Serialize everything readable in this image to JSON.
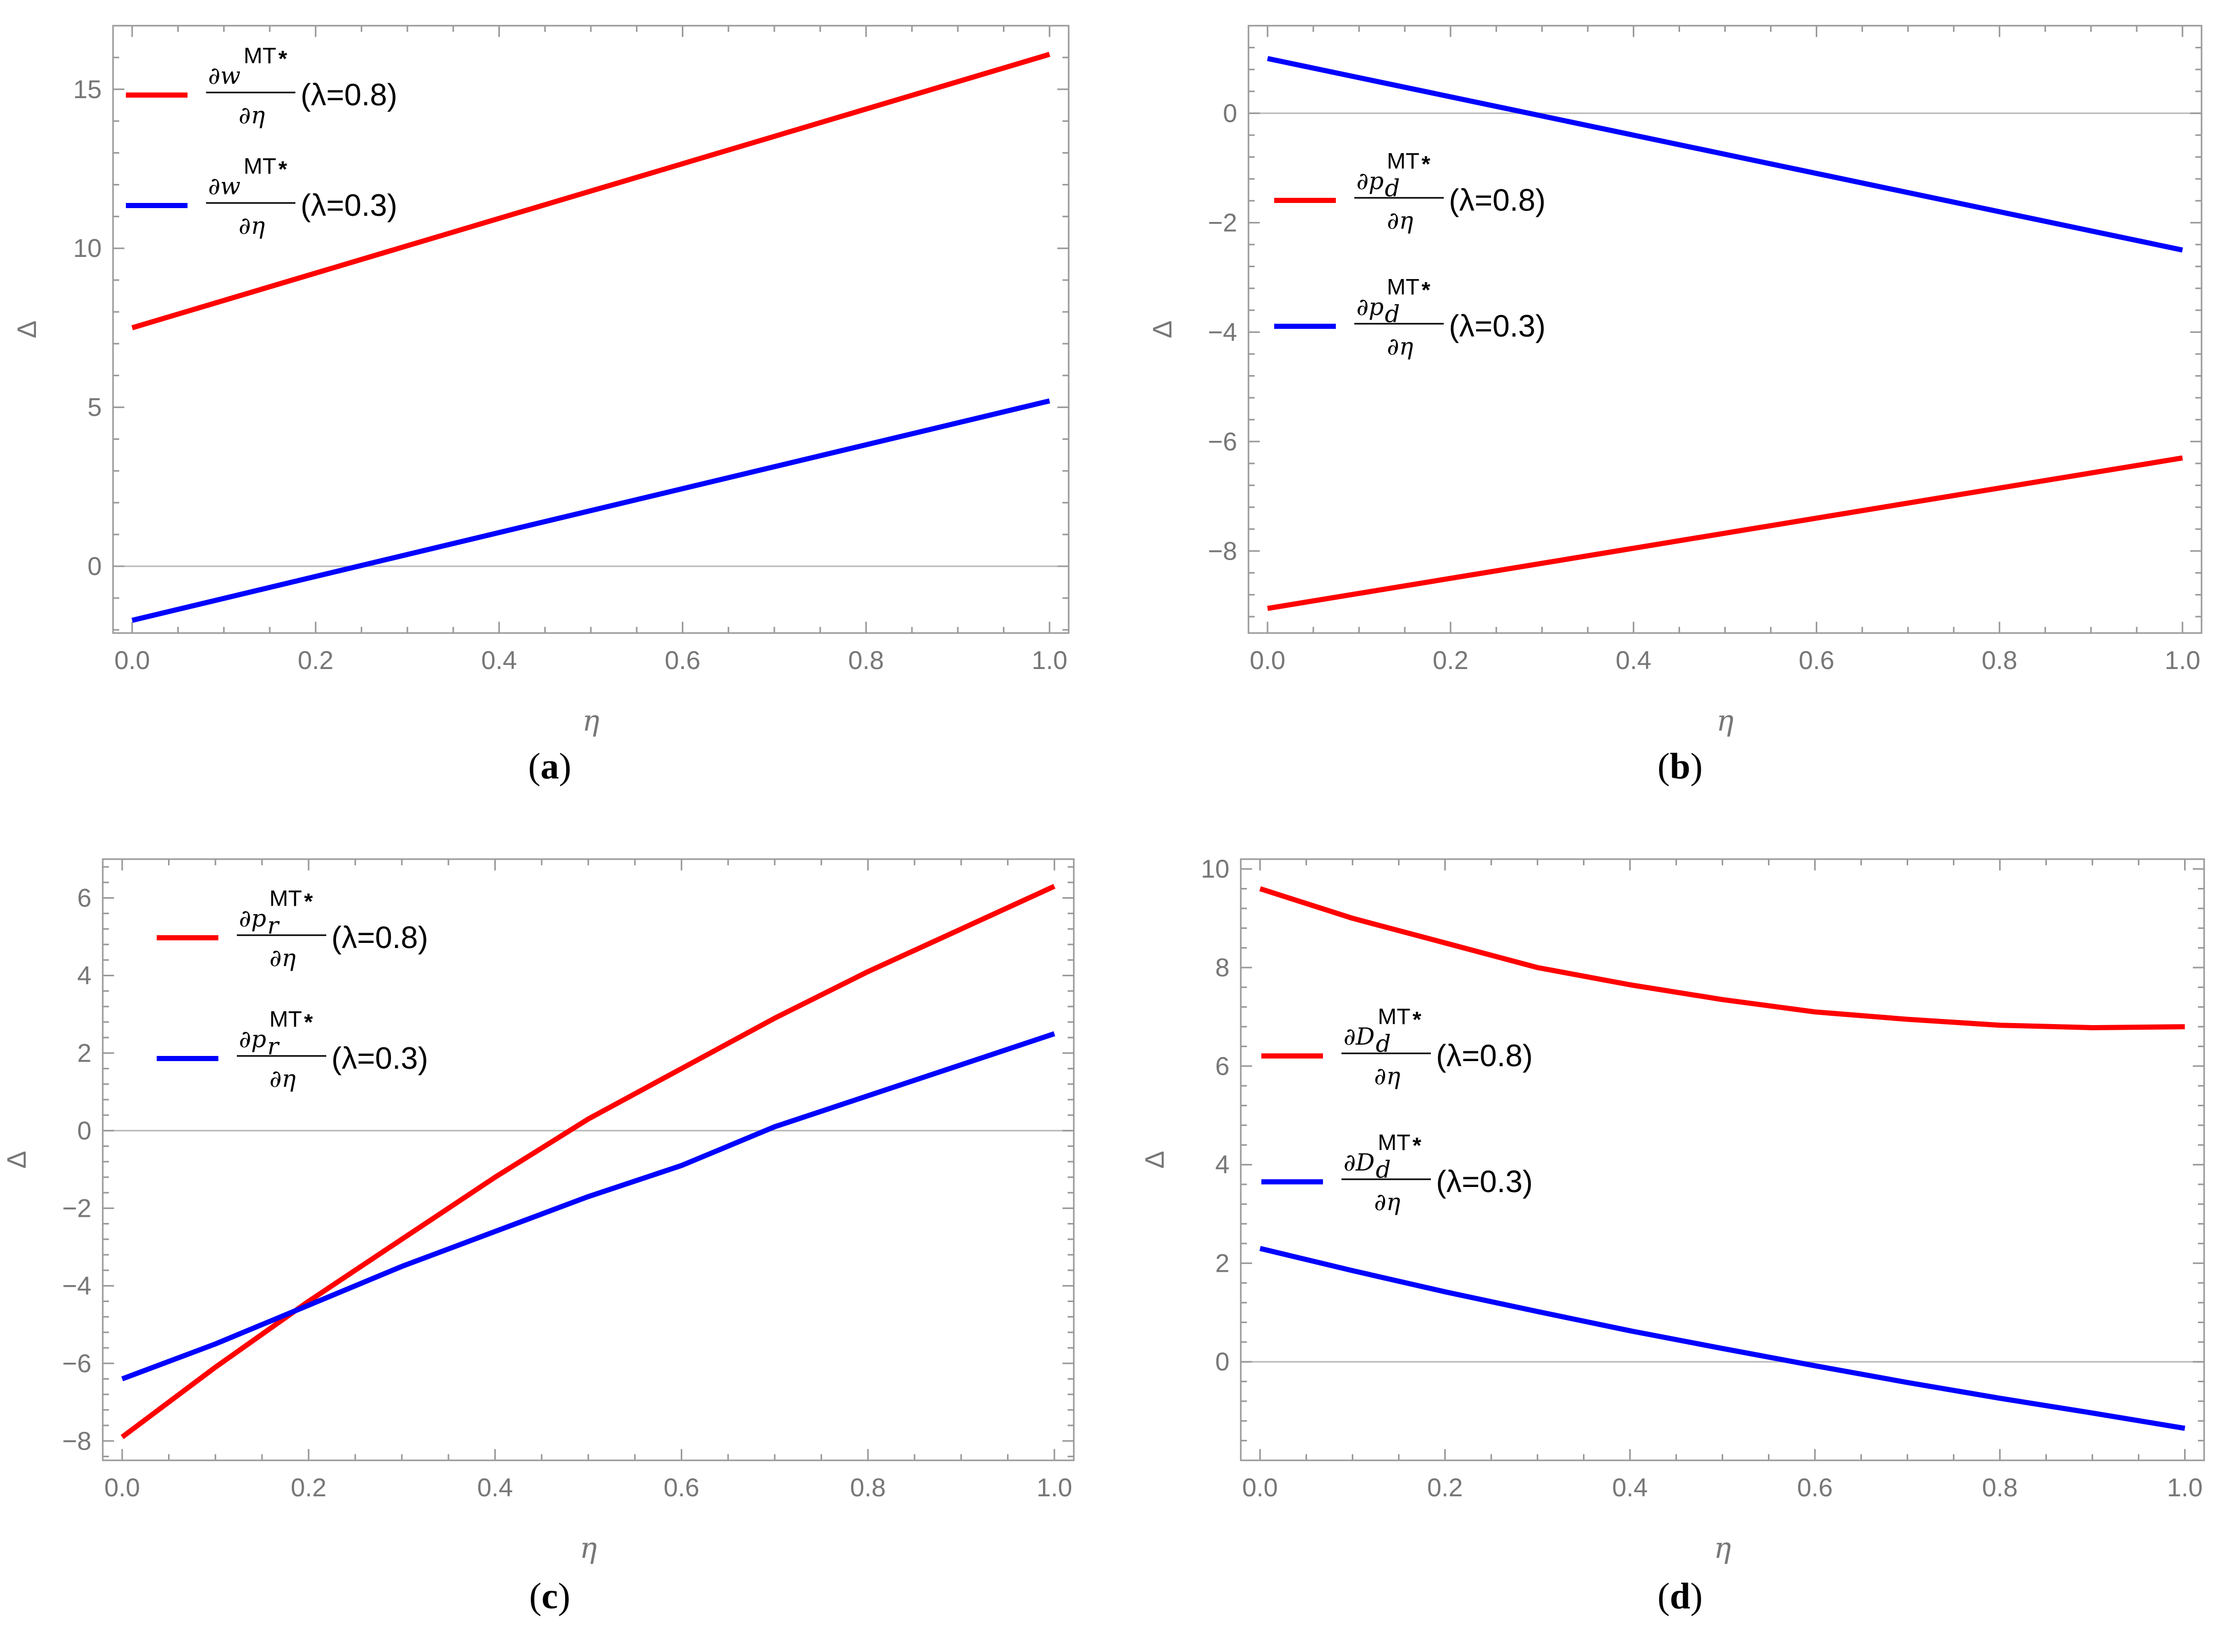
{
  "chart_data": [
    {
      "id": "a",
      "type": "line",
      "panel_label": {
        "open": "(",
        "letter": "a",
        "close": ")"
      },
      "xlabel": "η",
      "ylabel": "Δ",
      "xlim": [
        0,
        1
      ],
      "ylim": [
        -2.1,
        17
      ],
      "xticks": [
        0,
        0.2,
        0.4,
        0.6,
        0.8,
        1.0
      ],
      "xtick_labels": [
        "0.0",
        "0.2",
        "0.4",
        "0.6",
        "0.8",
        "1.0"
      ],
      "yticks": [
        0,
        5,
        10,
        15
      ],
      "ytick_labels": [
        "0",
        "5",
        "10",
        "15"
      ],
      "legend_position": "top-left",
      "series": [
        {
          "name": "∂w^MT*/∂η (λ=0.8)",
          "color": "#ff0000",
          "num": "∂w",
          "sup": "MT",
          "den": "∂η",
          "param": "(λ=0.8)",
          "points": [
            [
              0,
              7.5
            ],
            [
              1,
              16.1
            ]
          ]
        },
        {
          "name": "∂w^MT*/∂η (λ=0.3)",
          "color": "#0000ff",
          "num": "∂w",
          "sup": "MT",
          "den": "∂η",
          "param": "(λ=0.3)",
          "points": [
            [
              0,
              -1.7
            ],
            [
              1,
              5.2
            ]
          ]
        }
      ]
    },
    {
      "id": "b",
      "type": "line",
      "panel_label": {
        "open": "(",
        "letter": "b",
        "close": ")"
      },
      "xlabel": "η",
      "ylabel": "Δ",
      "xlim": [
        0,
        1
      ],
      "ylim": [
        -9.5,
        1.6
      ],
      "xticks": [
        0,
        0.2,
        0.4,
        0.6,
        0.8,
        1.0
      ],
      "xtick_labels": [
        "0.0",
        "0.2",
        "0.4",
        "0.6",
        "0.8",
        "1.0"
      ],
      "yticks": [
        -8,
        -6,
        -4,
        -2,
        0
      ],
      "ytick_labels": [
        "−8",
        "−6",
        "−4",
        "−2",
        "0"
      ],
      "legend_position": "center-left",
      "series": [
        {
          "name": "∂p_d^MT*/∂η (λ=0.8)",
          "color": "#ff0000",
          "num": "∂p",
          "sub": "d",
          "sup": "MT",
          "den": "∂η",
          "param": "(λ=0.8)",
          "points": [
            [
              0,
              -9.05
            ],
            [
              1,
              -6.3
            ]
          ]
        },
        {
          "name": "∂p_d^MT*/∂η (λ=0.3)",
          "color": "#0000ff",
          "num": "∂p",
          "sub": "d",
          "sup": "MT",
          "den": "∂η",
          "param": "(λ=0.3)",
          "points": [
            [
              0,
              1.0
            ],
            [
              1,
              -2.5
            ]
          ]
        }
      ]
    },
    {
      "id": "c",
      "type": "line",
      "panel_label": {
        "open": "(",
        "letter": "c",
        "close": ")"
      },
      "xlabel": "η",
      "ylabel": "Δ",
      "xlim": [
        0,
        1
      ],
      "ylim": [
        -8.5,
        7
      ],
      "xticks": [
        0,
        0.2,
        0.4,
        0.6,
        0.8,
        1.0
      ],
      "xtick_labels": [
        "0.0",
        "0.2",
        "0.4",
        "0.6",
        "0.8",
        "1.0"
      ],
      "yticks": [
        -8,
        -6,
        -4,
        -2,
        0,
        2,
        4,
        6
      ],
      "ytick_labels": [
        "−8",
        "−6",
        "−4",
        "−2",
        "0",
        "2",
        "4",
        "6"
      ],
      "legend_position": "top-left",
      "series": [
        {
          "name": "∂p_r^MT*/∂η (λ=0.8)",
          "color": "#ff0000",
          "num": "∂p",
          "sub": "r",
          "sup": "MT",
          "den": "∂η",
          "param": "(λ=0.8)",
          "points": [
            [
              0,
              -7.9
            ],
            [
              0.1,
              -6.1
            ],
            [
              0.2,
              -4.4
            ],
            [
              0.3,
              -2.8
            ],
            [
              0.4,
              -1.2
            ],
            [
              0.5,
              0.3
            ],
            [
              0.6,
              1.6
            ],
            [
              0.7,
              2.9
            ],
            [
              0.8,
              4.1
            ],
            [
              0.9,
              5.2
            ],
            [
              1.0,
              6.3
            ]
          ]
        },
        {
          "name": "∂p_r^MT*/∂η (λ=0.3)",
          "color": "#0000ff",
          "num": "∂p",
          "sub": "r",
          "sup": "MT",
          "den": "∂η",
          "param": "(λ=0.3)",
          "points": [
            [
              0,
              -6.4
            ],
            [
              0.1,
              -5.5
            ],
            [
              0.2,
              -4.5
            ],
            [
              0.3,
              -3.5
            ],
            [
              0.4,
              -2.6
            ],
            [
              0.5,
              -1.7
            ],
            [
              0.6,
              -0.9
            ],
            [
              0.7,
              0.1
            ],
            [
              0.8,
              0.9
            ],
            [
              0.9,
              1.7
            ],
            [
              1.0,
              2.5
            ]
          ]
        }
      ]
    },
    {
      "id": "d",
      "type": "line",
      "panel_label": {
        "open": "(",
        "letter": "d",
        "close": ")"
      },
      "xlabel": "η",
      "ylabel": "Δ",
      "xlim": [
        0,
        1
      ],
      "ylim": [
        -2.0,
        10.2
      ],
      "xticks": [
        0,
        0.2,
        0.4,
        0.6,
        0.8,
        1.0
      ],
      "xtick_labels": [
        "0.0",
        "0.2",
        "0.4",
        "0.6",
        "0.8",
        "1.0"
      ],
      "yticks": [
        0,
        2,
        4,
        6,
        8,
        10
      ],
      "ytick_labels": [
        "0",
        "2",
        "4",
        "6",
        "8",
        "10"
      ],
      "legend_position": "center-left",
      "series": [
        {
          "name": "∂D_d^MT*/∂η (λ=0.8)",
          "color": "#ff0000",
          "num": "∂D",
          "sub": "d",
          "sup": "MT",
          "den": "∂η",
          "param": "(λ=0.8)",
          "points": [
            [
              0,
              9.6
            ],
            [
              0.1,
              9.0
            ],
            [
              0.2,
              8.5
            ],
            [
              0.3,
              8.0
            ],
            [
              0.4,
              7.65
            ],
            [
              0.5,
              7.35
            ],
            [
              0.6,
              7.1
            ],
            [
              0.7,
              6.95
            ],
            [
              0.8,
              6.83
            ],
            [
              0.9,
              6.78
            ],
            [
              1.0,
              6.8
            ]
          ]
        },
        {
          "name": "∂D_d^MT*/∂η (λ=0.3)",
          "color": "#0000ff",
          "num": "∂D",
          "sub": "d",
          "sup": "MT",
          "den": "∂η",
          "param": "(λ=0.3)",
          "points": [
            [
              0,
              2.3
            ],
            [
              0.1,
              1.85
            ],
            [
              0.2,
              1.42
            ],
            [
              0.3,
              1.02
            ],
            [
              0.4,
              0.63
            ],
            [
              0.5,
              0.27
            ],
            [
              0.6,
              -0.08
            ],
            [
              0.7,
              -0.42
            ],
            [
              0.8,
              -0.74
            ],
            [
              0.9,
              -1.04
            ],
            [
              1.0,
              -1.35
            ]
          ]
        }
      ]
    }
  ]
}
